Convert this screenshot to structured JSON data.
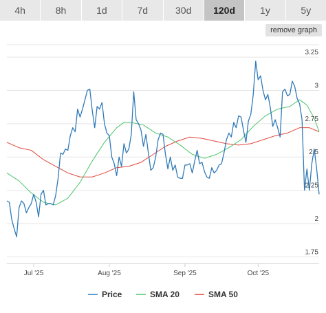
{
  "tabs": [
    {
      "label": "4h"
    },
    {
      "label": "8h"
    },
    {
      "label": "1d"
    },
    {
      "label": "7d"
    },
    {
      "label": "30d"
    },
    {
      "label": "120d",
      "active": true
    },
    {
      "label": "1y"
    },
    {
      "label": "5y"
    }
  ],
  "remove_button_label": "remove graph",
  "colors": {
    "price": "#2f7ab8",
    "sma20": "#4cc46a",
    "sma50": "#e0453a",
    "grid": "#e6e6e6",
    "axis": "#cfcfcf"
  },
  "chart_data": {
    "type": "line",
    "ylim": [
      1.7,
      3.38
    ],
    "yticks": [
      1.75,
      2,
      2.25,
      2.5,
      2.75,
      3,
      3.25
    ],
    "ytick_labels": [
      "1.75",
      "2",
      "2.25",
      "2.5",
      "2.75",
      "3",
      "3.25"
    ],
    "xlim": [
      "2025-06-20",
      "2025-10-26"
    ],
    "xticks": [
      {
        "date": "2025-07-01",
        "label": "Jul '25"
      },
      {
        "date": "2025-08-01",
        "label": "Aug '25"
      },
      {
        "date": "2025-09-01",
        "label": "Sep '25"
      },
      {
        "date": "2025-10-01",
        "label": "Oct '25"
      }
    ],
    "series": [
      {
        "name": "Price",
        "color": "#2f7ab8",
        "points": [
          [
            "2025-06-20",
            2.17
          ],
          [
            "2025-06-21",
            2.16
          ],
          [
            "2025-06-22",
            2.03
          ],
          [
            "2025-06-23",
            1.96
          ],
          [
            "2025-06-24",
            1.9
          ],
          [
            "2025-06-25",
            2.12
          ],
          [
            "2025-06-26",
            2.17
          ],
          [
            "2025-06-27",
            2.15
          ],
          [
            "2025-06-28",
            2.08
          ],
          [
            "2025-06-29",
            2.12
          ],
          [
            "2025-06-30",
            2.15
          ],
          [
            "2025-07-01",
            2.22
          ],
          [
            "2025-07-02",
            2.16
          ],
          [
            "2025-07-03",
            2.05
          ],
          [
            "2025-07-04",
            2.22
          ],
          [
            "2025-07-05",
            2.25
          ],
          [
            "2025-07-06",
            2.14
          ],
          [
            "2025-07-07",
            2.15
          ],
          [
            "2025-07-08",
            2.15
          ],
          [
            "2025-07-09",
            2.14
          ],
          [
            "2025-07-10",
            2.21
          ],
          [
            "2025-07-11",
            2.34
          ],
          [
            "2025-07-12",
            2.53
          ],
          [
            "2025-07-13",
            2.52
          ],
          [
            "2025-07-14",
            2.56
          ],
          [
            "2025-07-15",
            2.55
          ],
          [
            "2025-07-16",
            2.66
          ],
          [
            "2025-07-17",
            2.72
          ],
          [
            "2025-07-18",
            2.69
          ],
          [
            "2025-07-19",
            2.86
          ],
          [
            "2025-07-20",
            2.8
          ],
          [
            "2025-07-21",
            2.86
          ],
          [
            "2025-07-22",
            2.93
          ],
          [
            "2025-07-23",
            3.0
          ],
          [
            "2025-07-24",
            3.01
          ],
          [
            "2025-07-25",
            2.85
          ],
          [
            "2025-07-26",
            2.72
          ],
          [
            "2025-07-27",
            2.88
          ],
          [
            "2025-07-28",
            2.86
          ],
          [
            "2025-07-29",
            2.91
          ],
          [
            "2025-07-30",
            2.75
          ],
          [
            "2025-07-31",
            2.68
          ],
          [
            "2025-08-01",
            2.66
          ],
          [
            "2025-08-02",
            2.5
          ],
          [
            "2025-08-03",
            2.45
          ],
          [
            "2025-08-04",
            2.36
          ],
          [
            "2025-08-05",
            2.5
          ],
          [
            "2025-08-06",
            2.43
          ],
          [
            "2025-08-07",
            2.6
          ],
          [
            "2025-08-08",
            2.53
          ],
          [
            "2025-08-09",
            2.56
          ],
          [
            "2025-08-10",
            2.67
          ],
          [
            "2025-08-11",
            2.99
          ],
          [
            "2025-08-12",
            2.78
          ],
          [
            "2025-08-13",
            2.75
          ],
          [
            "2025-08-14",
            2.7
          ],
          [
            "2025-08-15",
            2.58
          ],
          [
            "2025-08-16",
            2.67
          ],
          [
            "2025-08-17",
            2.53
          ],
          [
            "2025-08-18",
            2.4
          ],
          [
            "2025-08-19",
            2.42
          ],
          [
            "2025-08-20",
            2.5
          ],
          [
            "2025-08-21",
            2.63
          ],
          [
            "2025-08-22",
            2.68
          ],
          [
            "2025-08-23",
            2.67
          ],
          [
            "2025-08-24",
            2.52
          ],
          [
            "2025-08-25",
            2.41
          ],
          [
            "2025-08-26",
            2.5
          ],
          [
            "2025-08-27",
            2.4
          ],
          [
            "2025-08-28",
            2.44
          ],
          [
            "2025-08-29",
            2.35
          ],
          [
            "2025-08-30",
            2.34
          ],
          [
            "2025-08-31",
            2.34
          ],
          [
            "2025-09-01",
            2.44
          ],
          [
            "2025-09-02",
            2.44
          ],
          [
            "2025-09-03",
            2.45
          ],
          [
            "2025-09-04",
            2.38
          ],
          [
            "2025-09-05",
            2.47
          ],
          [
            "2025-09-06",
            2.55
          ],
          [
            "2025-09-07",
            2.45
          ],
          [
            "2025-09-08",
            2.46
          ],
          [
            "2025-09-09",
            2.39
          ],
          [
            "2025-09-10",
            2.35
          ],
          [
            "2025-09-11",
            2.34
          ],
          [
            "2025-09-12",
            2.42
          ],
          [
            "2025-09-13",
            2.38
          ],
          [
            "2025-09-14",
            2.4
          ],
          [
            "2025-09-15",
            2.44
          ],
          [
            "2025-09-16",
            2.45
          ],
          [
            "2025-09-17",
            2.53
          ],
          [
            "2025-09-18",
            2.63
          ],
          [
            "2025-09-19",
            2.68
          ],
          [
            "2025-09-20",
            2.65
          ],
          [
            "2025-09-21",
            2.76
          ],
          [
            "2025-09-22",
            2.72
          ],
          [
            "2025-09-23",
            2.81
          ],
          [
            "2025-09-24",
            2.8
          ],
          [
            "2025-09-25",
            2.7
          ],
          [
            "2025-09-26",
            2.61
          ],
          [
            "2025-09-27",
            2.77
          ],
          [
            "2025-09-28",
            2.82
          ],
          [
            "2025-09-29",
            2.97
          ],
          [
            "2025-09-30",
            3.22
          ],
          [
            "2025-10-01",
            3.08
          ],
          [
            "2025-10-02",
            3.11
          ],
          [
            "2025-10-03",
            3.0
          ],
          [
            "2025-10-04",
            2.93
          ],
          [
            "2025-10-05",
            2.97
          ],
          [
            "2025-10-06",
            2.87
          ],
          [
            "2025-10-07",
            2.73
          ],
          [
            "2025-10-08",
            2.78
          ],
          [
            "2025-10-09",
            2.72
          ],
          [
            "2025-10-10",
            2.65
          ],
          [
            "2025-10-11",
            2.99
          ],
          [
            "2025-10-12",
            3.01
          ],
          [
            "2025-10-13",
            2.96
          ],
          [
            "2025-10-14",
            2.97
          ],
          [
            "2025-10-15",
            3.07
          ],
          [
            "2025-10-16",
            3.03
          ],
          [
            "2025-10-17",
            2.94
          ],
          [
            "2025-10-18",
            2.9
          ],
          [
            "2025-10-19",
            2.78
          ],
          [
            "2025-10-20",
            2.25
          ],
          [
            "2025-10-21",
            2.41
          ],
          [
            "2025-10-22",
            2.25
          ],
          [
            "2025-10-23",
            2.45
          ],
          [
            "2025-10-24",
            2.56
          ],
          [
            "2025-10-25",
            2.41
          ],
          [
            "2025-10-26",
            2.22
          ]
        ]
      },
      {
        "name": "SMA 20",
        "color": "#4cc46a",
        "points": [
          [
            "2025-06-20",
            2.38
          ],
          [
            "2025-06-25",
            2.32
          ],
          [
            "2025-06-30",
            2.23
          ],
          [
            "2025-07-05",
            2.16
          ],
          [
            "2025-07-10",
            2.14
          ],
          [
            "2025-07-15",
            2.19
          ],
          [
            "2025-07-20",
            2.31
          ],
          [
            "2025-07-25",
            2.47
          ],
          [
            "2025-07-30",
            2.61
          ],
          [
            "2025-08-04",
            2.72
          ],
          [
            "2025-08-07",
            2.76
          ],
          [
            "2025-08-10",
            2.76
          ],
          [
            "2025-08-15",
            2.74
          ],
          [
            "2025-08-20",
            2.68
          ],
          [
            "2025-08-25",
            2.65
          ],
          [
            "2025-08-30",
            2.59
          ],
          [
            "2025-09-04",
            2.52
          ],
          [
            "2025-09-09",
            2.49
          ],
          [
            "2025-09-14",
            2.52
          ],
          [
            "2025-09-19",
            2.57
          ],
          [
            "2025-09-24",
            2.63
          ],
          [
            "2025-09-29",
            2.73
          ],
          [
            "2025-10-04",
            2.81
          ],
          [
            "2025-10-09",
            2.86
          ],
          [
            "2025-10-14",
            2.88
          ],
          [
            "2025-10-18",
            2.93
          ],
          [
            "2025-10-21",
            2.89
          ],
          [
            "2025-10-24",
            2.79
          ],
          [
            "2025-10-26",
            2.69
          ]
        ]
      },
      {
        "name": "SMA 50",
        "color": "#e0453a",
        "points": [
          [
            "2025-06-20",
            2.61
          ],
          [
            "2025-06-25",
            2.57
          ],
          [
            "2025-06-30",
            2.55
          ],
          [
            "2025-07-05",
            2.48
          ],
          [
            "2025-07-10",
            2.43
          ],
          [
            "2025-07-15",
            2.38
          ],
          [
            "2025-07-20",
            2.35
          ],
          [
            "2025-07-25",
            2.35
          ],
          [
            "2025-07-30",
            2.38
          ],
          [
            "2025-08-04",
            2.42
          ],
          [
            "2025-08-09",
            2.43
          ],
          [
            "2025-08-14",
            2.46
          ],
          [
            "2025-08-19",
            2.52
          ],
          [
            "2025-08-24",
            2.58
          ],
          [
            "2025-08-29",
            2.62
          ],
          [
            "2025-09-03",
            2.65
          ],
          [
            "2025-09-08",
            2.64
          ],
          [
            "2025-09-13",
            2.62
          ],
          [
            "2025-09-18",
            2.6
          ],
          [
            "2025-09-23",
            2.59
          ],
          [
            "2025-09-28",
            2.6
          ],
          [
            "2025-10-03",
            2.63
          ],
          [
            "2025-10-08",
            2.66
          ],
          [
            "2025-10-13",
            2.68
          ],
          [
            "2025-10-18",
            2.72
          ],
          [
            "2025-10-22",
            2.72
          ],
          [
            "2025-10-26",
            2.69
          ]
        ]
      }
    ],
    "legend": {
      "position": "bottom-center",
      "items": [
        "Price",
        "SMA 20",
        "SMA 50"
      ]
    },
    "grid": true
  }
}
